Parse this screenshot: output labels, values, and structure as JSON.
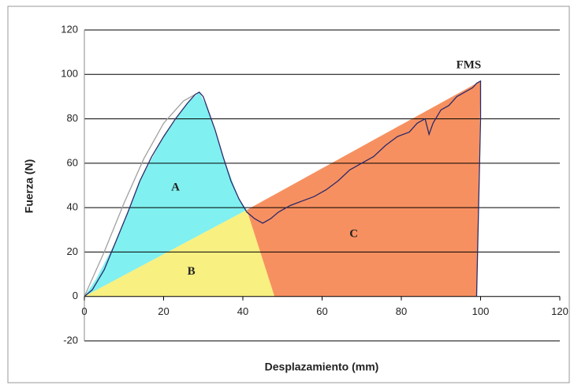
{
  "chart_data": {
    "type": "area",
    "xlabel": "Desplazamiento (mm)",
    "ylabel": "Fuerza (N)",
    "xlim": [
      0,
      120
    ],
    "xticks": [
      0,
      20,
      40,
      60,
      80,
      100,
      120
    ],
    "ylim": [
      -20,
      120
    ],
    "yticks": [
      -20,
      0,
      20,
      40,
      60,
      80,
      100,
      120
    ],
    "grid": true,
    "regions": [
      {
        "label": "A",
        "color": "#80f0f0",
        "label_x": 23,
        "label_y": 49,
        "x": [
          0,
          3,
          8,
          14,
          20,
          26,
          29,
          31,
          35,
          39,
          41
        ],
        "y": [
          0,
          8,
          25,
          52,
          72,
          87,
          92,
          85,
          63,
          44,
          39
        ]
      },
      {
        "label": "B",
        "color": "#f8f080",
        "label_x": 27,
        "label_y": 11,
        "x": [
          0,
          41,
          48
        ],
        "y": [
          0,
          39,
          0
        ]
      },
      {
        "label": "C",
        "color": "#f79060",
        "label_x": 68,
        "label_y": 28,
        "x": [
          41,
          100,
          99,
          48
        ],
        "y": [
          39,
          97,
          0,
          0
        ]
      }
    ],
    "series": [
      {
        "color": "#a0a0a0",
        "x": [
          0,
          5,
          10,
          15,
          20,
          25,
          28
        ],
        "values": [
          0,
          20,
          42,
          62,
          78,
          88,
          91
        ]
      },
      {
        "color": "#2a2a6a",
        "x": [
          0,
          2,
          5,
          8,
          11,
          14,
          17,
          20,
          23,
          26,
          28,
          29,
          30,
          31,
          33,
          35,
          37,
          39,
          41,
          43,
          45,
          47,
          49,
          52,
          55,
          58,
          61,
          64,
          67,
          70,
          73,
          76,
          79,
          82,
          84,
          86,
          87,
          88,
          90,
          92,
          94,
          96,
          98,
          99,
          100,
          100,
          99.5,
          99
        ],
        "values": [
          0,
          3,
          12,
          25,
          38,
          52,
          63,
          72,
          80,
          87,
          91,
          92,
          90,
          85,
          75,
          63,
          52,
          44,
          38,
          35,
          33,
          35,
          38,
          41,
          43,
          45,
          48,
          52,
          57,
          60,
          63,
          68,
          72,
          74,
          78,
          80,
          73,
          78,
          84,
          86,
          90,
          92,
          94,
          96,
          97,
          80,
          40,
          0
        ]
      }
    ],
    "annotations": [
      {
        "text": "FMS",
        "x": 97,
        "y": 104
      }
    ]
  }
}
